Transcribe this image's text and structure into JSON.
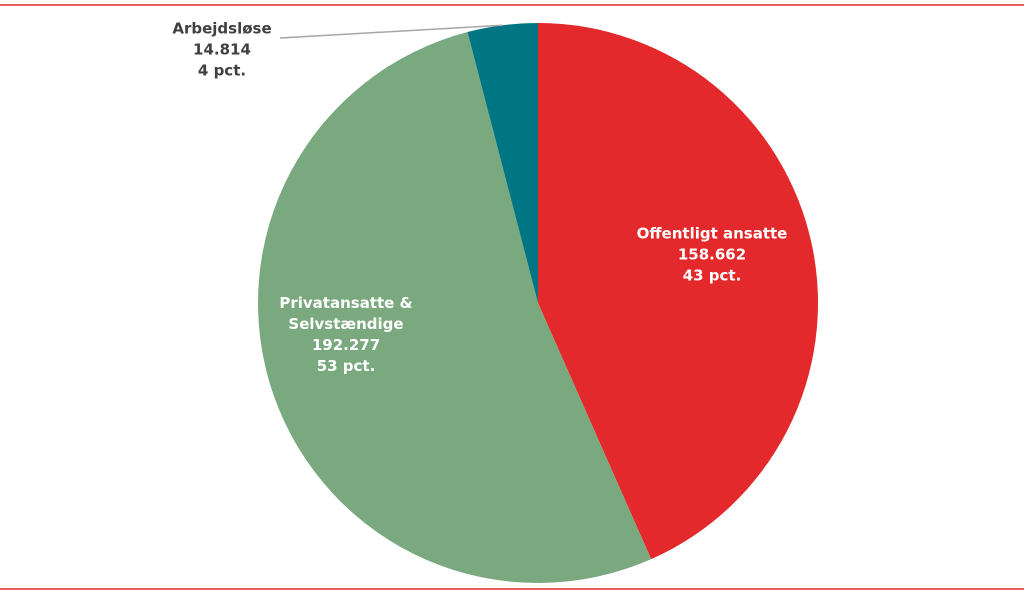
{
  "chart_data": {
    "type": "pie",
    "categories": [
      "Offentligt ansatte",
      "Privatansatte & Selvstændige",
      "Arbejdsløse"
    ],
    "values": [
      158662,
      192277,
      14814
    ],
    "value_labels": [
      "158.662",
      "192.277",
      "14.814"
    ],
    "percentages": [
      43,
      53,
      4
    ],
    "percentage_labels": [
      "43 pct.",
      "53 pct.",
      "4 pct."
    ],
    "colors": [
      "#e3292b",
      "#7aa97f",
      "#007584"
    ]
  }
}
